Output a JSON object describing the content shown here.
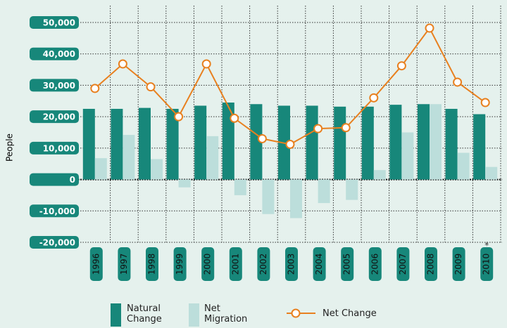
{
  "chart_data": {
    "type": "bar_line",
    "y_label": "People",
    "categories": [
      "1996",
      "1997",
      "1998",
      "1999",
      "2000",
      "2001",
      "2002",
      "2003",
      "2004",
      "2005",
      "2006",
      "2007",
      "2008",
      "2009",
      "2010"
    ],
    "series": [
      {
        "name": "Natural Change",
        "type": "bar",
        "color": "#17877a",
        "values": [
          22500,
          22500,
          22800,
          22500,
          23500,
          24500,
          24000,
          23500,
          23500,
          23200,
          23200,
          23800,
          24000,
          22500,
          20800
        ]
      },
      {
        "name": "Net Migration",
        "type": "bar",
        "color": "#bcdedb",
        "values": [
          6800,
          14200,
          6500,
          -2500,
          13800,
          -5000,
          -11000,
          -12300,
          -7500,
          -6500,
          3000,
          15000,
          24000,
          8500,
          4000
        ]
      },
      {
        "name": "Net Change",
        "type": "line",
        "color": "#e8801f",
        "values": [
          29000,
          36800,
          29500,
          20000,
          36800,
          19500,
          13000,
          11200,
          16200,
          16500,
          26000,
          36200,
          48200,
          31000,
          24500
        ]
      }
    ],
    "annotation": "*",
    "ylim": [
      -20000,
      50000
    ],
    "yticks": [
      {
        "value": -20000,
        "label": "-20,000"
      },
      {
        "value": -10000,
        "label": "-10,000"
      },
      0,
      {
        "value": 10000,
        "label": "10,000"
      },
      {
        "value": 20000,
        "label": "20,000"
      },
      {
        "value": 30000,
        "label": "30,000"
      },
      {
        "value": 40000,
        "label": "40,000"
      },
      {
        "value": 50000,
        "label": "50,000"
      }
    ],
    "grid": true,
    "legend": "bottom"
  }
}
